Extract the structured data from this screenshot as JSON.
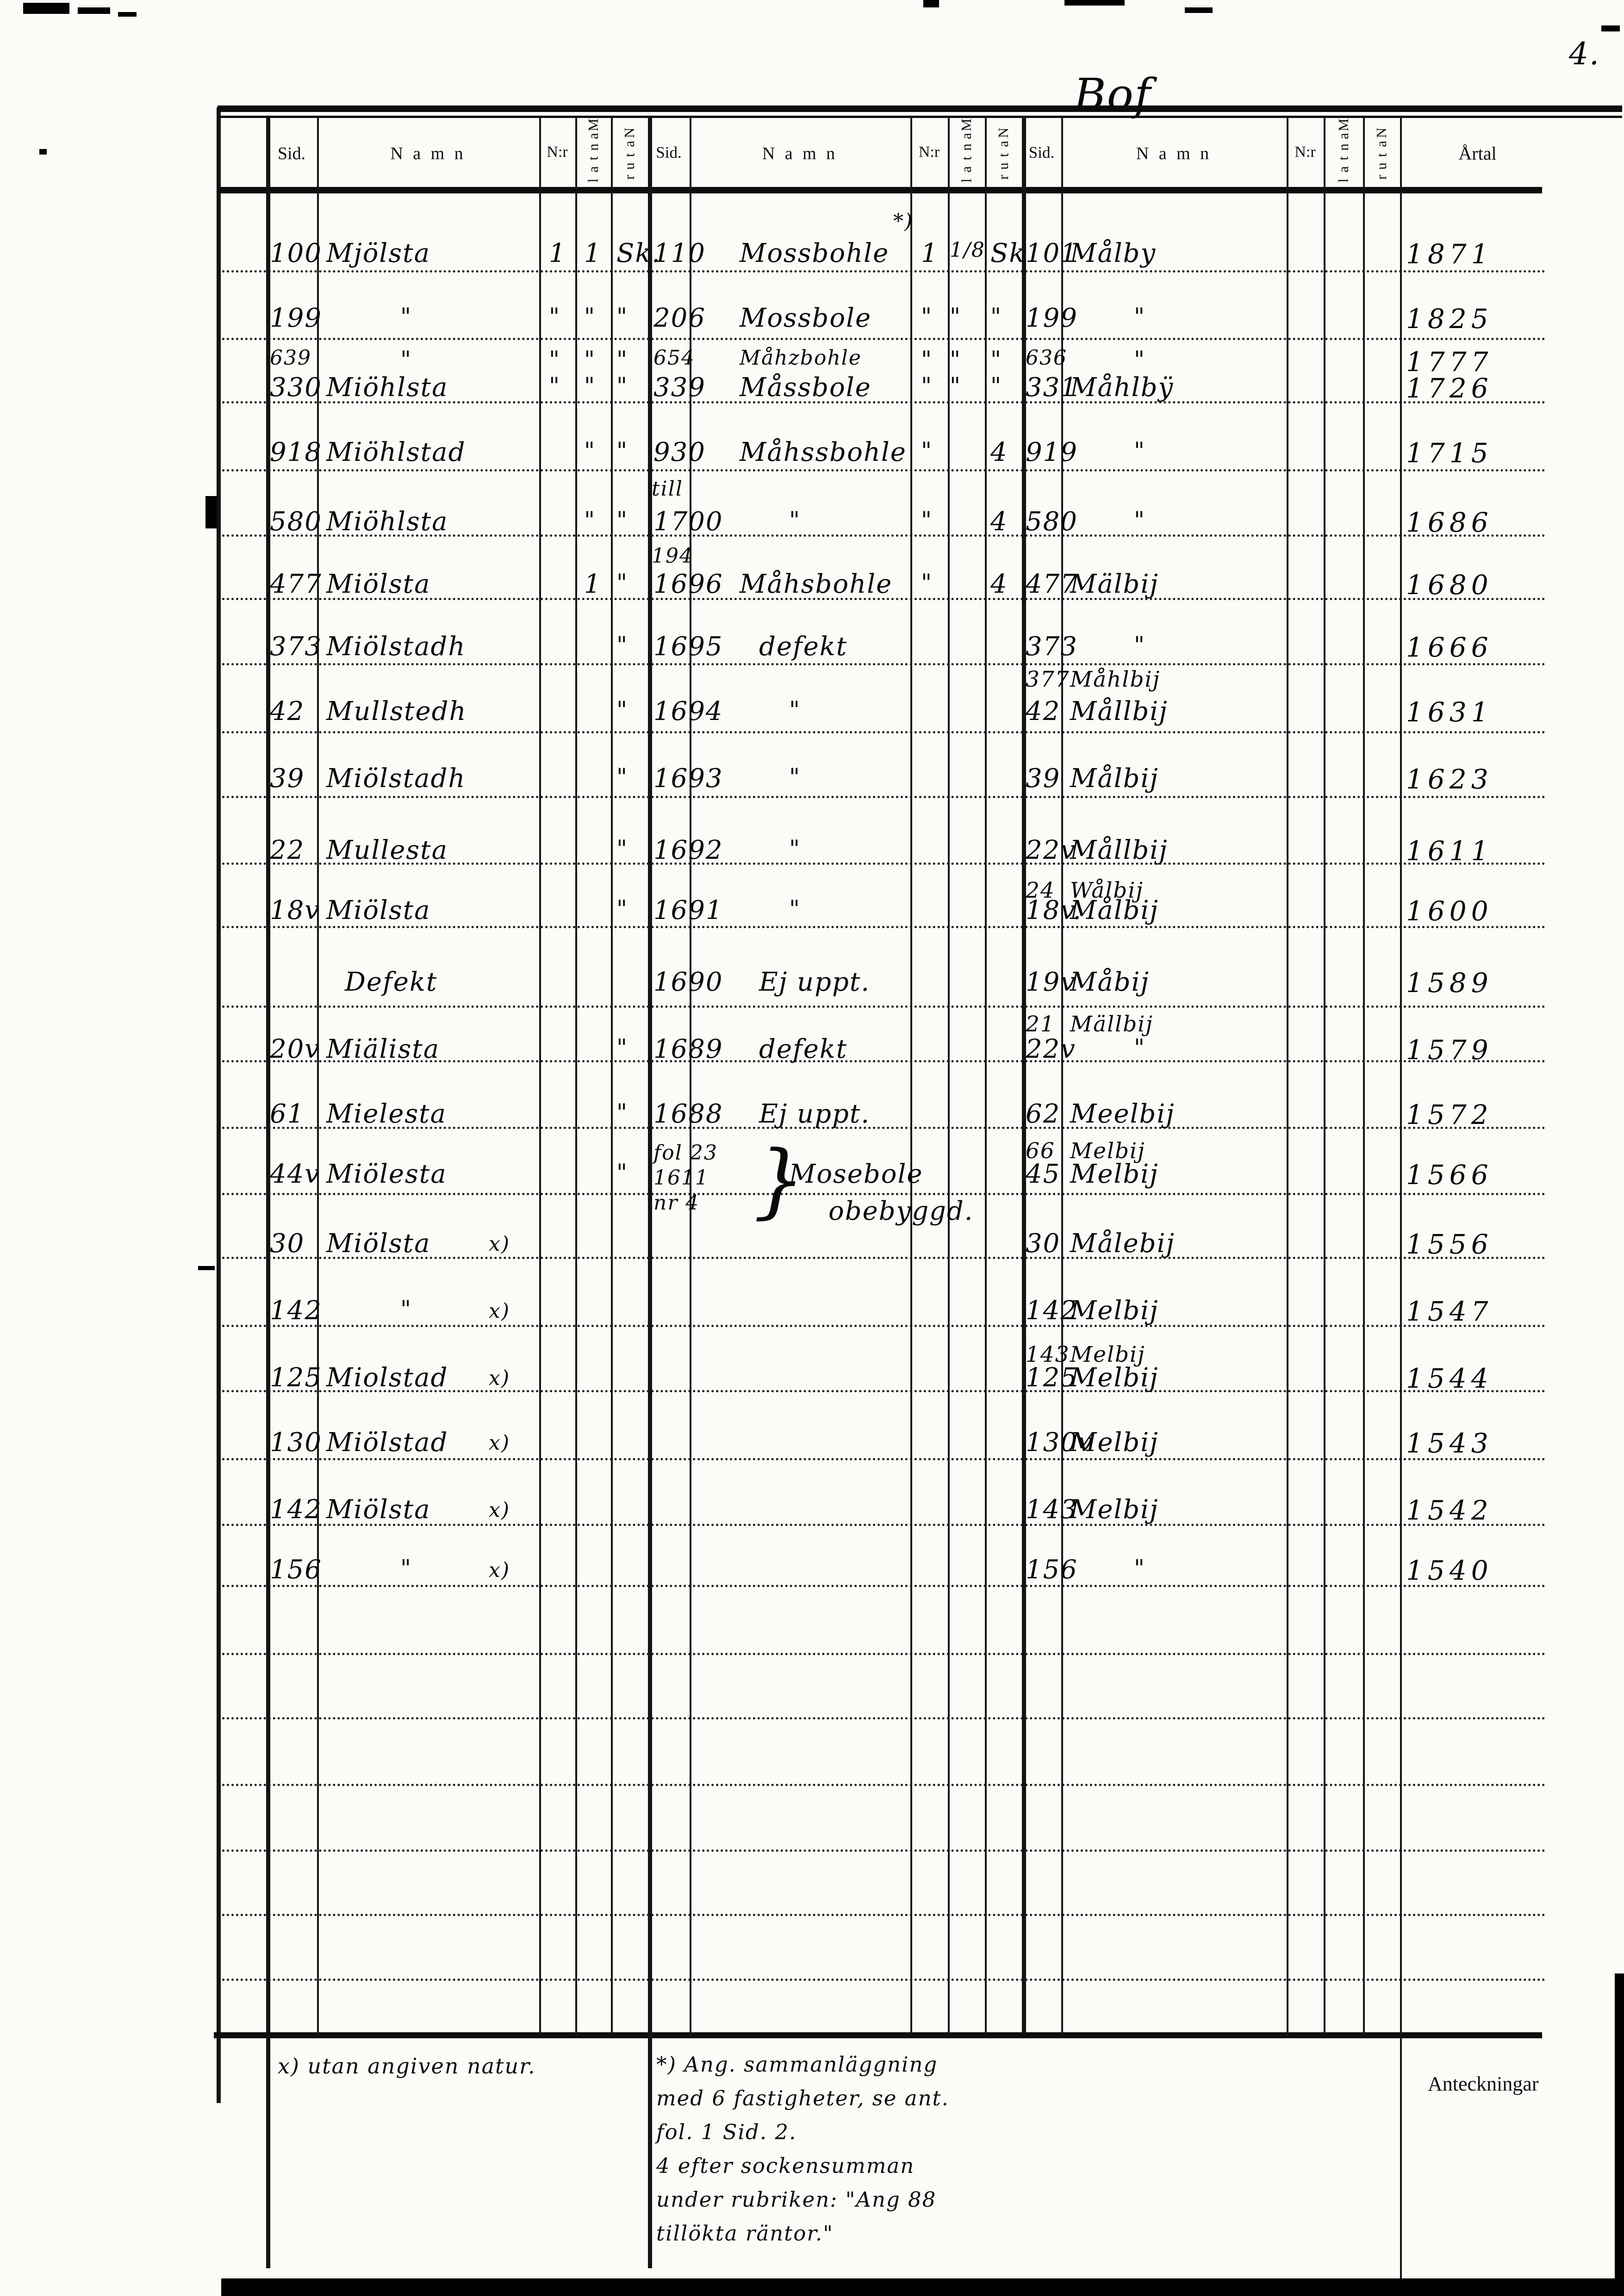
{
  "page": {
    "corner_number": "4.",
    "top_annotation": "Bof",
    "bottom_right_label": "Anteckningar"
  },
  "header": {
    "sid": "Sid.",
    "namn": "N a m n",
    "nr": "N:r",
    "mantal": "Mantal",
    "natur": "Natur",
    "artal": "Årtal"
  },
  "footnotes": {
    "left": "x) utan angiven natur.",
    "right": "*) Ang. sammanläggning\nmed 6 fastigheter, se ant.\nfol. 1 Sid. 2.\n4 efter sockensumman\nunder rubriken: \"Ang 88\ntillökta räntor.\""
  },
  "rows": [
    {
      "year": "1871",
      "left": {
        "sid": "100",
        "namn": "Mjölsta",
        "nr": "1",
        "mantal": "1",
        "natur": "Sk."
      },
      "mid": {
        "sid": "110",
        "namn": "Mossbohle",
        "namn_mark": "*)",
        "nr": "1",
        "mantal": "1/8",
        "natur": "Sk"
      },
      "right": {
        "sid": "101",
        "namn": "Målby"
      }
    },
    {
      "year": "1825",
      "left": {
        "sid": "199",
        "namn": "\"",
        "nr": "\"",
        "mantal": "\"",
        "natur": "\""
      },
      "mid": {
        "sid": "206",
        "namn": "Mossbole",
        "nr": "\"",
        "mantal": "\"",
        "natur": "\""
      },
      "right": {
        "sid": "199",
        "namn": "\""
      }
    },
    {
      "year": "1777",
      "left": {
        "sid": "639",
        "namn": "\"",
        "nr": "\"",
        "mantal": "\"",
        "natur": "\""
      },
      "mid": {
        "sid": "654",
        "namn": "Måhzbohle",
        "nr": "\"",
        "mantal": "\"",
        "natur": "\""
      },
      "right": {
        "sid": "636",
        "namn": "\""
      }
    },
    {
      "year": "1726",
      "left": {
        "sid": "330",
        "namn": "Miöhlsta",
        "nr": "\"",
        "mantal": "\"",
        "natur": "\""
      },
      "mid": {
        "sid": "339",
        "namn": "Måssbole",
        "nr": "\"",
        "mantal": "\"",
        "natur": "\""
      },
      "right": {
        "sid": "331",
        "namn": "Måhlbÿ"
      }
    },
    {
      "year": "1715",
      "left": {
        "sid": "918",
        "namn": "Miöhlstad",
        "mantal": "\"",
        "natur": "\""
      },
      "mid": {
        "sid": "930",
        "sid_note": "till",
        "namn": "Måhssbohle",
        "nr": "\"",
        "natur": "4"
      },
      "right": {
        "sid": "919",
        "namn": "\""
      }
    },
    {
      "year": "1686",
      "left": {
        "sid": "580",
        "namn": "Miöhlsta",
        "mantal": "\"",
        "natur": "\""
      },
      "mid": {
        "sid": "1700",
        "namn": "\"",
        "nr": "\"",
        "natur": "4"
      },
      "right": {
        "sid": "580",
        "namn": "\""
      }
    },
    {
      "year": "1680",
      "left": {
        "sid": "477",
        "namn": "Miölsta",
        "mantal": "1",
        "natur": "\""
      },
      "mid": {
        "sid": "1696",
        "sid_note": "194",
        "namn": "Måhsbohle",
        "nr": "\"",
        "natur": "4"
      },
      "right": {
        "sid": "477",
        "namn": "Mälbij"
      }
    },
    {
      "year": "1666",
      "left": {
        "sid": "373",
        "namn": "Miölstadh",
        "natur": "\""
      },
      "mid": {
        "sid": "1695",
        "namn": "defekt"
      },
      "right": {
        "sid": "373",
        "namn": "\"",
        "sid2": "377",
        "namn2": "Måhlbij"
      }
    },
    {
      "year": "1631",
      "left": {
        "sid": "42",
        "namn": "Mullstedh",
        "natur": "\""
      },
      "mid": {
        "sid": "1694",
        "namn": "\""
      },
      "right": {
        "sid": "42",
        "namn": "Mållbij"
      }
    },
    {
      "year": "1623",
      "left": {
        "sid": "39",
        "namn": "Miölstadh",
        "natur": "\""
      },
      "mid": {
        "sid": "1693",
        "namn": "\""
      },
      "right": {
        "sid": "39",
        "namn": "Målbij"
      }
    },
    {
      "year": "1611",
      "left": {
        "sid": "22",
        "namn": "Mullesta",
        "natur": "\""
      },
      "mid": {
        "sid": "1692",
        "namn": "\""
      },
      "right": {
        "sid": "22v",
        "namn": "Mållbij",
        "sid2": "24",
        "namn2": "Wålbij"
      }
    },
    {
      "year": "1600",
      "left": {
        "sid": "18v",
        "namn": "Miölsta",
        "natur": "\""
      },
      "mid": {
        "sid": "1691",
        "namn": "\""
      },
      "right": {
        "sid": "18v.",
        "namn": "Målbij"
      }
    },
    {
      "year": "1589",
      "left": {
        "namn": "Defekt"
      },
      "mid": {
        "sid": "1690",
        "namn": "Ej uppt."
      },
      "right": {
        "sid": "19v",
        "namn": "Måbij",
        "sid2": "21",
        "namn2": "Mällbij"
      }
    },
    {
      "year": "1579",
      "left": {
        "sid": "20v",
        "namn": "Miälista",
        "natur": "\""
      },
      "mid": {
        "sid": "1689",
        "namn": "defekt"
      },
      "right": {
        "sid": "22v",
        "namn": "\""
      }
    },
    {
      "year": "1572",
      "left": {
        "sid": "61",
        "namn": "Mielesta",
        "natur": "\""
      },
      "mid": {
        "sid": "1688",
        "namn": "Ej uppt."
      },
      "right": {
        "sid": "62",
        "namn": "Meelbij",
        "sid2": "66",
        "namn2": "Melbij"
      }
    },
    {
      "year": "1566",
      "left": {
        "sid": "44v",
        "namn": "Miölesta",
        "natur": "\""
      },
      "mid": {
        "sid": "fol 23\n1611\nnr 4",
        "brace": "}",
        "namn": "Mosebole",
        "namn2": "obebyggd."
      },
      "right": {
        "sid": "45",
        "namn": "Melbij"
      }
    },
    {
      "year": "1556",
      "left": {
        "sid": "30",
        "namn": "Miölsta",
        "mark": "x)"
      },
      "mid": {},
      "right": {
        "sid": "30",
        "namn": "Målebij"
      }
    },
    {
      "year": "1547",
      "left": {
        "sid": "142",
        "namn": "\"",
        "mark": "x)"
      },
      "mid": {},
      "right": {
        "sid": "142",
        "namn": "Melbij",
        "sid2": "143",
        "namn2": "Melbij"
      }
    },
    {
      "year": "1544",
      "left": {
        "sid": "125",
        "namn": "Miolstad",
        "mark": "x)"
      },
      "mid": {},
      "right": {
        "sid": "125",
        "namn": "Melbij"
      }
    },
    {
      "year": "1543",
      "left": {
        "sid": "130",
        "namn": "Miölstad",
        "mark": "x)"
      },
      "mid": {},
      "right": {
        "sid": "130v",
        "namn": "Melbij"
      }
    },
    {
      "year": "1542",
      "left": {
        "sid": "142",
        "namn": "Miölsta",
        "mark": "x)"
      },
      "mid": {},
      "right": {
        "sid": "143",
        "namn": "Melbij"
      }
    },
    {
      "year": "1540",
      "left": {
        "sid": "156",
        "namn": "\"",
        "mark": "x)"
      },
      "mid": {},
      "right": {
        "sid": "156",
        "namn": "\""
      }
    }
  ]
}
